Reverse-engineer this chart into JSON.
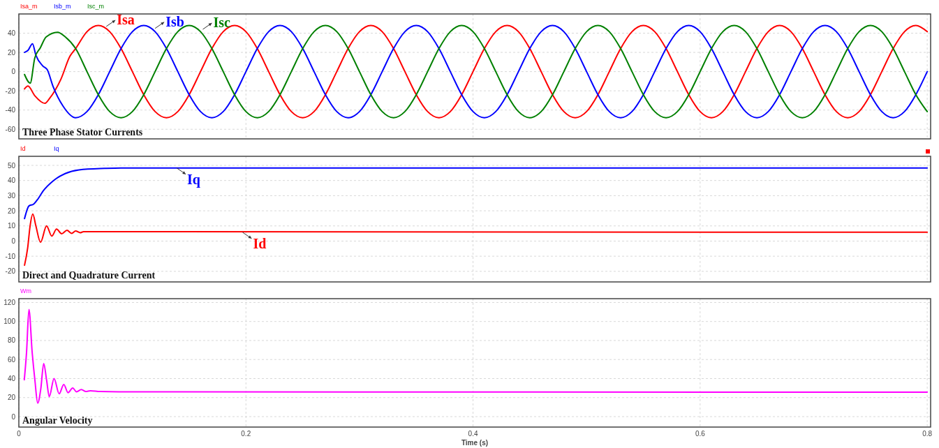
{
  "chart_data": [
    {
      "type": "line",
      "title": "Three Phase Stator Currents",
      "legend": "top left",
      "grid": true,
      "tick_labels": "y",
      "xlim": [
        0,
        0.803
      ],
      "xticks": [
        0,
        0.2,
        0.4,
        0.6,
        0.8
      ],
      "ylim": [
        -70,
        60
      ],
      "yticks": [
        -60,
        -40,
        -20,
        0,
        20,
        40
      ],
      "series": [
        {
          "name": "Isa_m",
          "color": "#ff0000",
          "x": [
            0.005,
            0.008,
            0.014,
            0.023,
            0.027,
            0.037,
            0.045,
            0.05,
            0.06,
            0.07,
            0.08,
            0.09,
            0.1,
            0.11,
            0.12,
            0.13,
            0.14,
            0.15,
            0.16,
            0.17,
            0.18,
            0.19,
            0.2,
            0.21,
            0.22,
            0.23,
            0.24,
            0.25,
            0.26,
            0.27,
            0.28,
            0.29,
            0.3,
            0.31,
            0.32,
            0.33,
            0.34,
            0.35,
            0.36,
            0.37,
            0.38,
            0.39,
            0.4,
            0.41,
            0.42,
            0.43,
            0.44,
            0.45,
            0.46,
            0.47,
            0.48,
            0.49,
            0.5,
            0.51,
            0.52,
            0.53,
            0.54,
            0.55,
            0.56,
            0.57,
            0.58,
            0.59,
            0.6,
            0.61,
            0.62,
            0.63,
            0.64,
            0.65,
            0.66,
            0.67,
            0.68,
            0.69,
            0.7,
            0.71,
            0.72,
            0.73,
            0.74,
            0.75,
            0.76,
            0.77,
            0.78,
            0.79,
            0.8
          ],
          "values": [
            -18,
            -15,
            -25,
            -33,
            -28,
            -8,
            16,
            24,
            41.6,
            48,
            41.6,
            24,
            0,
            -24,
            -41.6,
            -48,
            -41.6,
            -24,
            0,
            24,
            41.6,
            48,
            41.6,
            24,
            0,
            -24,
            -41.6,
            -48,
            -41.6,
            -24,
            0,
            24,
            41.6,
            48,
            41.6,
            24,
            0,
            -24,
            -41.6,
            -48,
            -41.6,
            -24,
            0,
            24,
            41.6,
            48,
            41.6,
            24,
            0,
            -24,
            -41.6,
            -48,
            -41.6,
            -24,
            0,
            24,
            41.6,
            48,
            41.6,
            24,
            0,
            -24,
            -41.6,
            -48,
            -41.6,
            -24,
            0,
            24,
            41.6,
            48,
            41.6,
            24,
            0,
            -24,
            -41.6,
            -48,
            -41.6,
            -24,
            0,
            24,
            41.6,
            48,
            41.6
          ]
        },
        {
          "name": "Isb_m",
          "color": "#0000ff",
          "x": [
            0.005,
            0.008,
            0.012,
            0.015,
            0.021,
            0.025,
            0.03,
            0.039,
            0.05,
            0.06,
            0.07,
            0.08,
            0.09,
            0.1,
            0.11,
            0.12,
            0.13,
            0.14,
            0.15,
            0.16,
            0.17,
            0.18,
            0.19,
            0.2,
            0.21,
            0.22,
            0.23,
            0.24,
            0.25,
            0.26,
            0.27,
            0.28,
            0.29,
            0.3,
            0.31,
            0.32,
            0.33,
            0.34,
            0.35,
            0.36,
            0.37,
            0.38,
            0.39,
            0.4,
            0.41,
            0.42,
            0.43,
            0.44,
            0.45,
            0.46,
            0.47,
            0.48,
            0.49,
            0.5,
            0.51,
            0.52,
            0.53,
            0.54,
            0.55,
            0.56,
            0.57,
            0.58,
            0.59,
            0.6,
            0.61,
            0.62,
            0.63,
            0.64,
            0.65,
            0.66,
            0.67,
            0.68,
            0.69,
            0.7,
            0.71,
            0.72,
            0.73,
            0.74,
            0.75,
            0.76,
            0.77,
            0.78,
            0.79,
            0.8
          ],
          "values": [
            20,
            22,
            29,
            17,
            6,
            2,
            -15,
            -36,
            -48,
            -41.6,
            -24,
            0,
            24,
            41.6,
            48,
            41.6,
            24,
            0,
            -24,
            -41.6,
            -48,
            -41.6,
            -24,
            0,
            24,
            41.6,
            48,
            41.6,
            24,
            0,
            -24,
            -41.6,
            -48,
            -41.6,
            -24,
            0,
            24,
            41.6,
            48,
            41.6,
            24,
            0,
            -24,
            -41.6,
            -48,
            -41.6,
            -24,
            0,
            24,
            41.6,
            48,
            41.6,
            24,
            0,
            -24,
            -41.6,
            -48,
            -41.6,
            -24,
            0,
            24,
            41.6,
            48,
            41.6,
            24,
            0,
            -24,
            -41.6,
            -48,
            -41.6,
            -24,
            0,
            24,
            41.6,
            48,
            41.6,
            24,
            0,
            -24,
            -41.6,
            -48,
            -41.6,
            -24,
            0
          ]
        },
        {
          "name": "Isc_m",
          "color": "#008000",
          "x": [
            0.005,
            0.01,
            0.014,
            0.019,
            0.024,
            0.034,
            0.041,
            0.05,
            0.06,
            0.07,
            0.08,
            0.09,
            0.1,
            0.11,
            0.12,
            0.13,
            0.14,
            0.15,
            0.16,
            0.17,
            0.18,
            0.19,
            0.2,
            0.21,
            0.22,
            0.23,
            0.24,
            0.25,
            0.26,
            0.27,
            0.28,
            0.29,
            0.3,
            0.31,
            0.32,
            0.33,
            0.34,
            0.35,
            0.36,
            0.37,
            0.38,
            0.39,
            0.4,
            0.41,
            0.42,
            0.43,
            0.44,
            0.45,
            0.46,
            0.47,
            0.48,
            0.49,
            0.5,
            0.51,
            0.52,
            0.53,
            0.54,
            0.55,
            0.56,
            0.57,
            0.58,
            0.59,
            0.6,
            0.61,
            0.62,
            0.63,
            0.64,
            0.65,
            0.66,
            0.67,
            0.68,
            0.69,
            0.7,
            0.71,
            0.72,
            0.73,
            0.74,
            0.75,
            0.76,
            0.77,
            0.78,
            0.79,
            0.8
          ],
          "values": [
            -3,
            -12,
            14,
            25,
            36,
            41,
            36,
            24,
            0,
            -24,
            -41.6,
            -48,
            -41.6,
            -24,
            0,
            24,
            41.6,
            48,
            41.6,
            24,
            0,
            -24,
            -41.6,
            -48,
            -41.6,
            -24,
            0,
            24,
            41.6,
            48,
            41.6,
            24,
            0,
            -24,
            -41.6,
            -48,
            -41.6,
            -24,
            0,
            24,
            41.6,
            48,
            41.6,
            24,
            0,
            -24,
            -41.6,
            -48,
            -41.6,
            -24,
            0,
            24,
            41.6,
            48,
            41.6,
            24,
            0,
            -24,
            -41.6,
            -48,
            -41.6,
            -24,
            0,
            24,
            41.6,
            48,
            41.6,
            24,
            0,
            -24,
            -41.6,
            -48,
            -41.6,
            -24,
            0,
            24,
            41.6,
            48,
            41.6,
            24,
            0,
            -24,
            -41.6
          ]
        }
      ],
      "annotations": [
        {
          "text": "Isa",
          "x": 0.077,
          "y": 47
        },
        {
          "text": "Isb",
          "x": 0.12,
          "y": 45
        },
        {
          "text": "Isc",
          "x": 0.162,
          "y": 44
        }
      ]
    },
    {
      "type": "line",
      "title": "Direct and Quadrature Current",
      "legend": "top left",
      "grid": true,
      "tick_labels": "y",
      "xlim": [
        0,
        0.803
      ],
      "xticks": [
        0,
        0.2,
        0.4,
        0.6,
        0.8
      ],
      "ylim": [
        -27,
        56
      ],
      "yticks": [
        -20,
        -10,
        0,
        10,
        20,
        30,
        40,
        50
      ],
      "series": [
        {
          "name": "Id",
          "color": "#ff0000",
          "x": [
            0.005,
            0.0078,
            0.0098,
            0.0123,
            0.015,
            0.0191,
            0.0244,
            0.029,
            0.0332,
            0.0377,
            0.0424,
            0.0465,
            0.05,
            0.054,
            0.057,
            0.8
          ],
          "values": [
            -16,
            -4.4,
            9.4,
            17.8,
            10,
            -0.8,
            10,
            3.3,
            7.9,
            4.8,
            7.1,
            5.1,
            6.7,
            5.5,
            6.2,
            5.8
          ]
        },
        {
          "name": "Iq",
          "color": "#0000ff",
          "x": [
            0.005,
            0.0089,
            0.013,
            0.017,
            0.0213,
            0.0306,
            0.0408,
            0.053,
            0.0756,
            0.09,
            0.8
          ],
          "values": [
            14.8,
            23.2,
            24.4,
            28,
            33,
            40,
            44.6,
            47,
            48,
            48.3,
            48.3
          ]
        }
      ],
      "annotations": [
        {
          "text": "Id",
          "x": 0.197,
          "y": 5.8
        },
        {
          "text": "Iq",
          "x": 0.139,
          "y": 48.3
        }
      ]
    },
    {
      "type": "line",
      "title": "Angular Velocity",
      "legend": "top left",
      "grid": true,
      "xlabel": "Time (s)",
      "xlim": [
        0,
        0.803
      ],
      "xticks": [
        0,
        0.2,
        0.4,
        0.6,
        0.8
      ],
      "ylim": [
        -11,
        124
      ],
      "yticks": [
        0,
        20,
        40,
        60,
        80,
        100,
        120
      ],
      "series": [
        {
          "name": "Wm",
          "color": "#ff00ff",
          "x": [
            0.0048,
            0.0068,
            0.0089,
            0.0117,
            0.0141,
            0.0166,
            0.0193,
            0.0219,
            0.0244,
            0.0268,
            0.031,
            0.0355,
            0.0396,
            0.0433,
            0.0474,
            0.0508,
            0.055,
            0.059,
            0.063,
            0.0715,
            0.106,
            0.8
          ],
          "values": [
            38.7,
            68,
            112.6,
            68,
            38.7,
            14.2,
            28.9,
            55.8,
            38.7,
            21,
            40,
            24,
            33.8,
            25.2,
            30.1,
            26,
            28.4,
            26.4,
            27.2,
            26.4,
            26,
            25.6
          ]
        }
      ]
    }
  ]
}
